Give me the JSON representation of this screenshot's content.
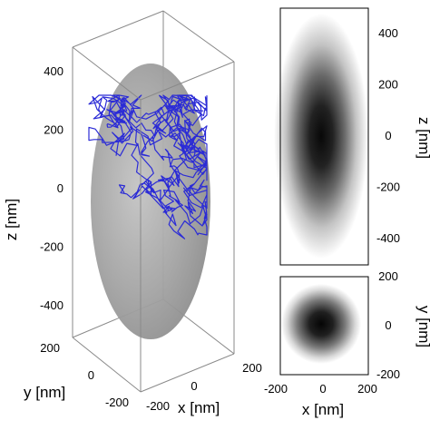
{
  "chart_data": [
    {
      "type": "3d-line",
      "panel": "main",
      "description_of_content": "random walk trajectory inside an ellipsoid",
      "xlabel": "x [nm]",
      "ylabel": "y [nm]",
      "zlabel": "z [nm]",
      "x_ticks": [
        "-200",
        "0",
        "200"
      ],
      "y_ticks": [
        "-200",
        "0",
        "200"
      ],
      "z_ticks": [
        "-400",
        "-200",
        "0",
        "200",
        "400"
      ],
      "xlim": [
        -200,
        200
      ],
      "ylim": [
        -200,
        200
      ],
      "zlim": [
        -500,
        500
      ],
      "ellipsoid": {
        "semi_axis_x": 200,
        "semi_axis_y": 200,
        "semi_axis_z": 480,
        "color": "#9a9a9a"
      },
      "trajectory_color": "#2b2bd6"
    },
    {
      "type": "heatmap",
      "panel": "xz-projection",
      "xlabel": "",
      "ylabel": "z [nm]",
      "y_ticks": [
        "400",
        "200",
        "0",
        "-200",
        "-400"
      ],
      "ylim": [
        -500,
        500
      ],
      "xlim": [
        -200,
        200
      ],
      "sigma_x": 75,
      "sigma_z": 180,
      "colormap": "white-to-black"
    },
    {
      "type": "heatmap",
      "panel": "xy-projection",
      "xlabel": "x [nm]",
      "ylabel": "y [nm]",
      "x_ticks": [
        "-200",
        "0",
        "200"
      ],
      "y_ticks": [
        "200",
        "0",
        "-200"
      ],
      "xlim": [
        -200,
        200
      ],
      "ylim": [
        -200,
        200
      ],
      "sigma_x": 70,
      "sigma_y": 70,
      "colormap": "white-to-black"
    }
  ]
}
